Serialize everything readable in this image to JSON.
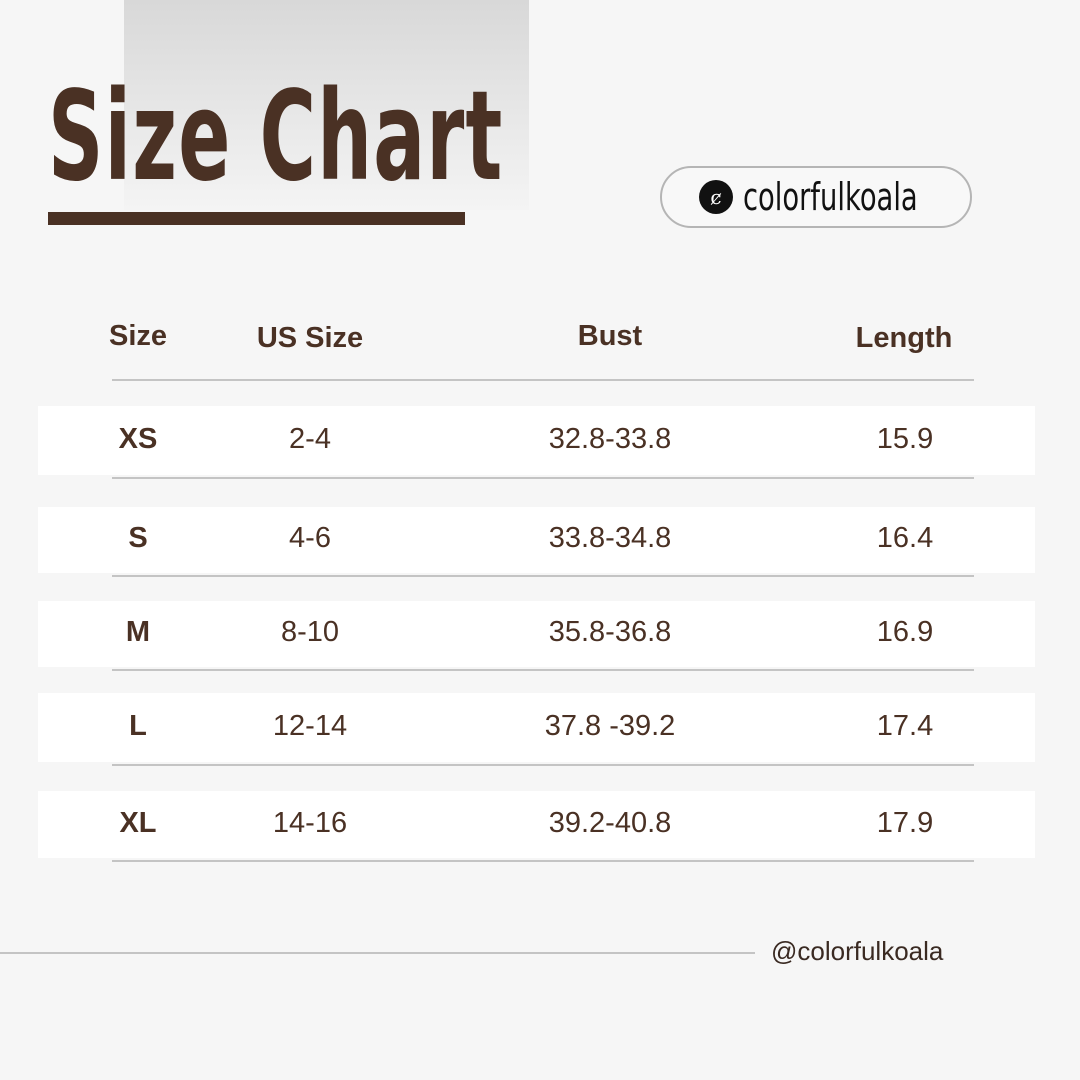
{
  "title": "Size Chart",
  "brand": {
    "name": "colorfulkoala",
    "icon": "colorfulkoala-logo-icon",
    "handle": "@colorfulkoala"
  },
  "colors": {
    "primary": "#4a3124",
    "background": "#f6f6f6",
    "row": "#ffffff"
  },
  "table": {
    "headers": [
      "Size",
      "US Size",
      "Bust",
      "Length"
    ],
    "rows": [
      [
        "XS",
        "2-4",
        "32.8-33.8",
        "15.9"
      ],
      [
        "S",
        "4-6",
        "33.8-34.8",
        "16.4"
      ],
      [
        "M",
        "8-10",
        "35.8-36.8",
        "16.9"
      ],
      [
        "L",
        "12-14",
        "37.8 -39.2",
        "17.4"
      ],
      [
        "XL",
        "14-16",
        "39.2-40.8",
        "17.9"
      ]
    ]
  }
}
